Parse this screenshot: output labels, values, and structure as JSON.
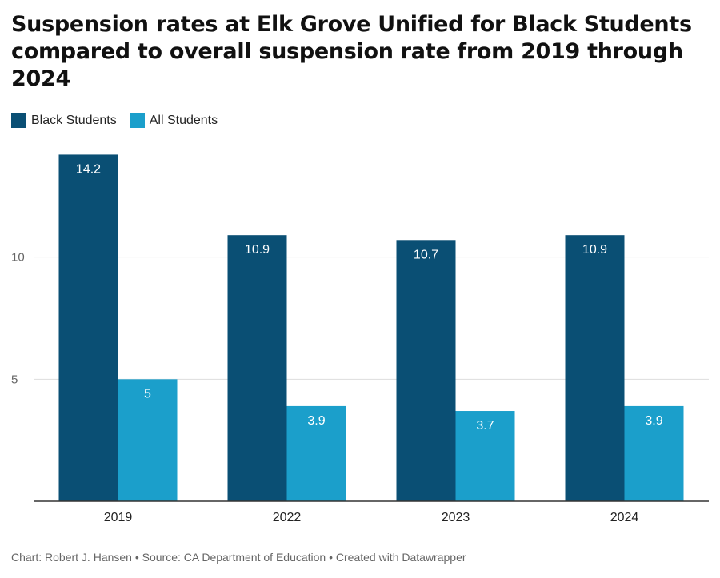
{
  "title": "Suspension rates at Elk Grove Unified for Black Students compared to overall suspension rate from 2019 through 2024",
  "footer": "Chart: Robert J. Hansen • Source: CA Department of Education • Created with Datawrapper",
  "colors": {
    "black_students": "#0a4f74",
    "all_students": "#1b9fcb",
    "grid": "#dddddd",
    "baseline": "#333333"
  },
  "chart_data": {
    "type": "bar",
    "title": "Suspension rates at Elk Grove Unified for Black Students compared to overall suspension rate from 2019 through 2024",
    "xlabel": "",
    "ylabel": "",
    "categories": [
      "2019",
      "2022",
      "2023",
      "2024"
    ],
    "series": [
      {
        "name": "Black Students",
        "values": [
          14.2,
          10.9,
          10.7,
          10.9
        ],
        "value_labels": [
          "14.2",
          "10.9",
          "10.7",
          "10.9"
        ]
      },
      {
        "name": "All Students",
        "values": [
          5,
          3.9,
          3.7,
          3.9
        ],
        "value_labels": [
          "5",
          "3.9",
          "3.7",
          "3.9"
        ]
      }
    ],
    "ylim": [
      0,
      15
    ],
    "yticks": [
      5,
      10
    ],
    "ytick_labels": [
      "5",
      "10"
    ],
    "grid": true,
    "legend": "top-left"
  }
}
